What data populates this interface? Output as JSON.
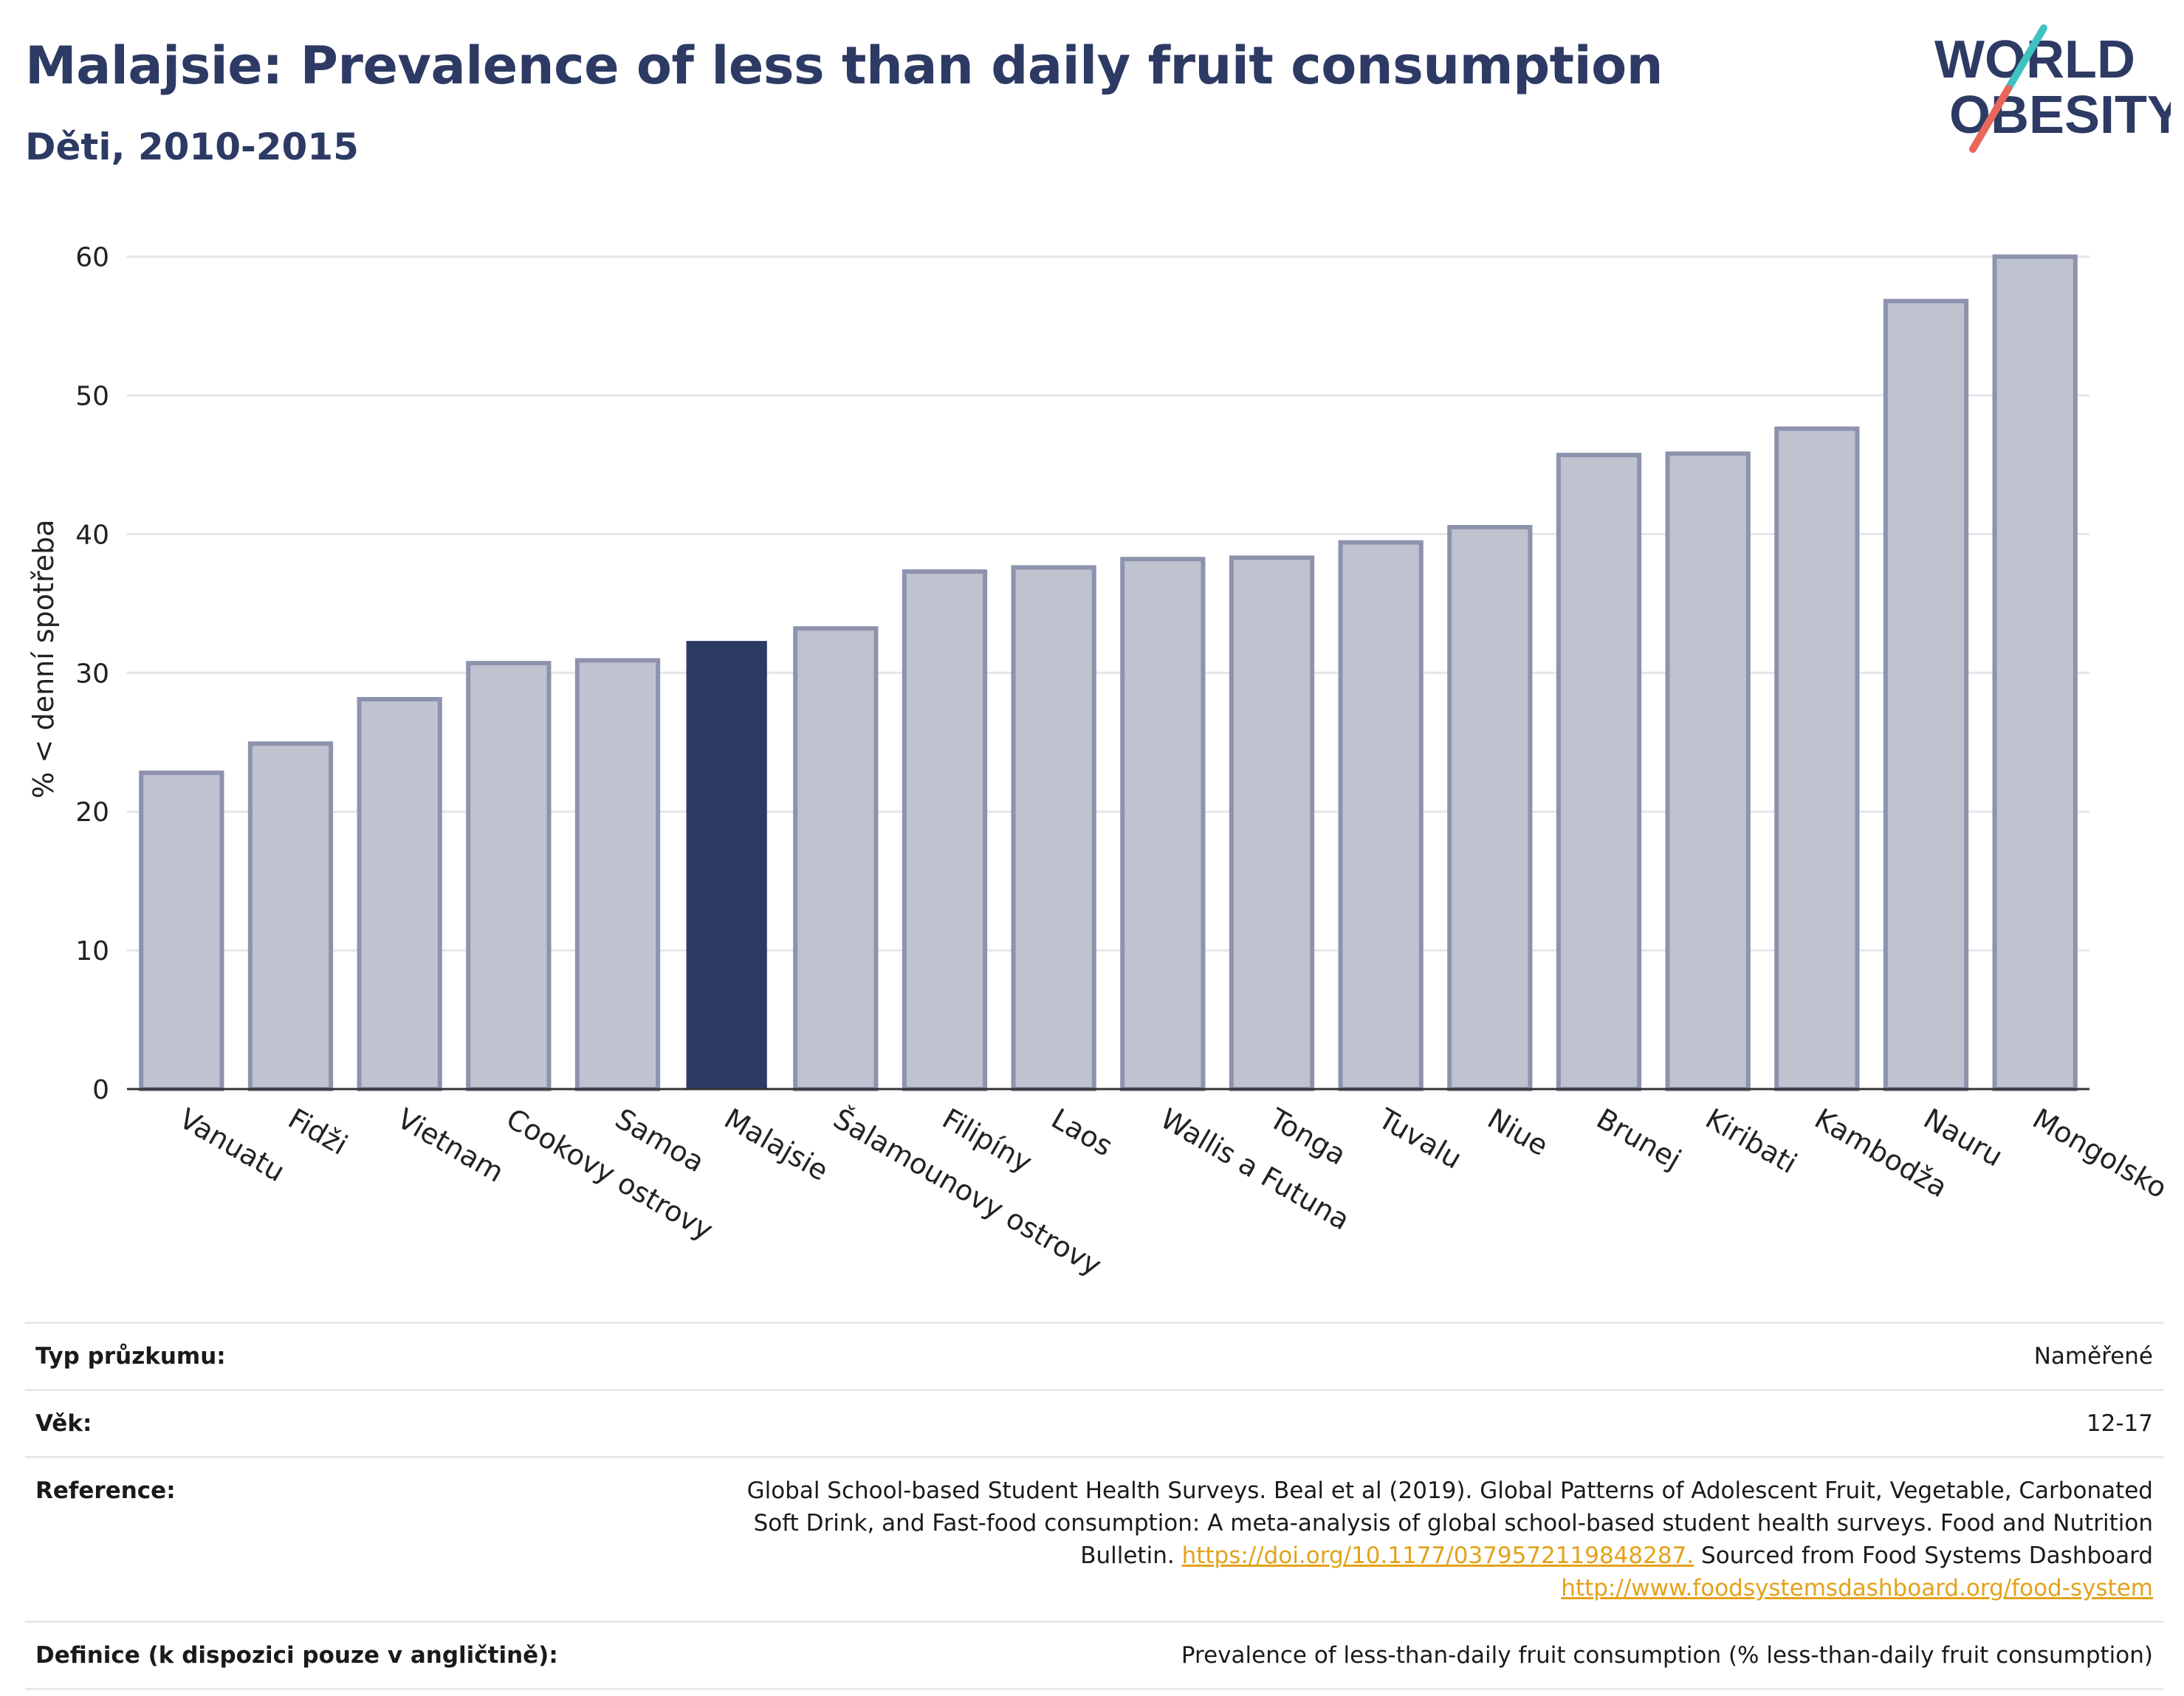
{
  "header": {
    "title": "Malajsie: Prevalence of less than daily fruit consumption",
    "subtitle": "Děti, 2010-2015"
  },
  "logo": {
    "line1": "WORLD",
    "line2": "OBESITY",
    "colors": {
      "text": "#2d3a64",
      "slash_top": "#3fc1c0",
      "slash_bottom": "#e8665a"
    }
  },
  "chart_data": {
    "type": "bar",
    "ylabel": "% < denní spotřeba",
    "ylim": [
      0,
      62
    ],
    "yticks": [
      0,
      10,
      20,
      30,
      40,
      50,
      60
    ],
    "grid": true,
    "highlight": "Malajsie",
    "colors": {
      "bar": "#bfc3d0",
      "bar_border": "#8d93ad",
      "highlight": "#2d3a64"
    },
    "categories": [
      "Vanuatu",
      "Fidži",
      "Vietnam",
      "Cookovy ostrovy",
      "Samoa",
      "Malajsie",
      "Šalamounovy ostrovy",
      "Filipíny",
      "Laos",
      "Wallis a Futuna",
      "Tonga",
      "Tuvalu",
      "Niue",
      "Brunej",
      "Kiribati",
      "Kambodža",
      "Nauru",
      "Mongolsko"
    ],
    "values": [
      22.8,
      24.9,
      28.1,
      30.7,
      30.9,
      32.3,
      33.2,
      37.3,
      37.6,
      38.2,
      38.3,
      39.4,
      40.5,
      45.7,
      45.8,
      47.6,
      56.8,
      60.0
    ]
  },
  "info": [
    {
      "label": "Typ průzkumu:",
      "value": "Naměřené"
    },
    {
      "label": "Věk:",
      "value": "12-17"
    },
    {
      "label": "Reference:",
      "value": "Global School-based Student Health Surveys. Beal et al (2019). Global Patterns of Adolescent Fruit, Vegetable, Carbonated Soft Drink, and Fast-food consumption: A meta-analysis of global school-based student health surveys. Food and Nutrition Bulletin.",
      "link1": "https://doi.org/10.1177/0379572119848287.",
      "mid": "Sourced from Food Systems Dashboard",
      "link2": "http://www.foodsystemsdashboard.org/food-system"
    },
    {
      "label": "Definice (k dispozici pouze v angličtině):",
      "value": "Prevalence of less-than-daily fruit consumption (% less-than-daily fruit consumption)"
    }
  ]
}
